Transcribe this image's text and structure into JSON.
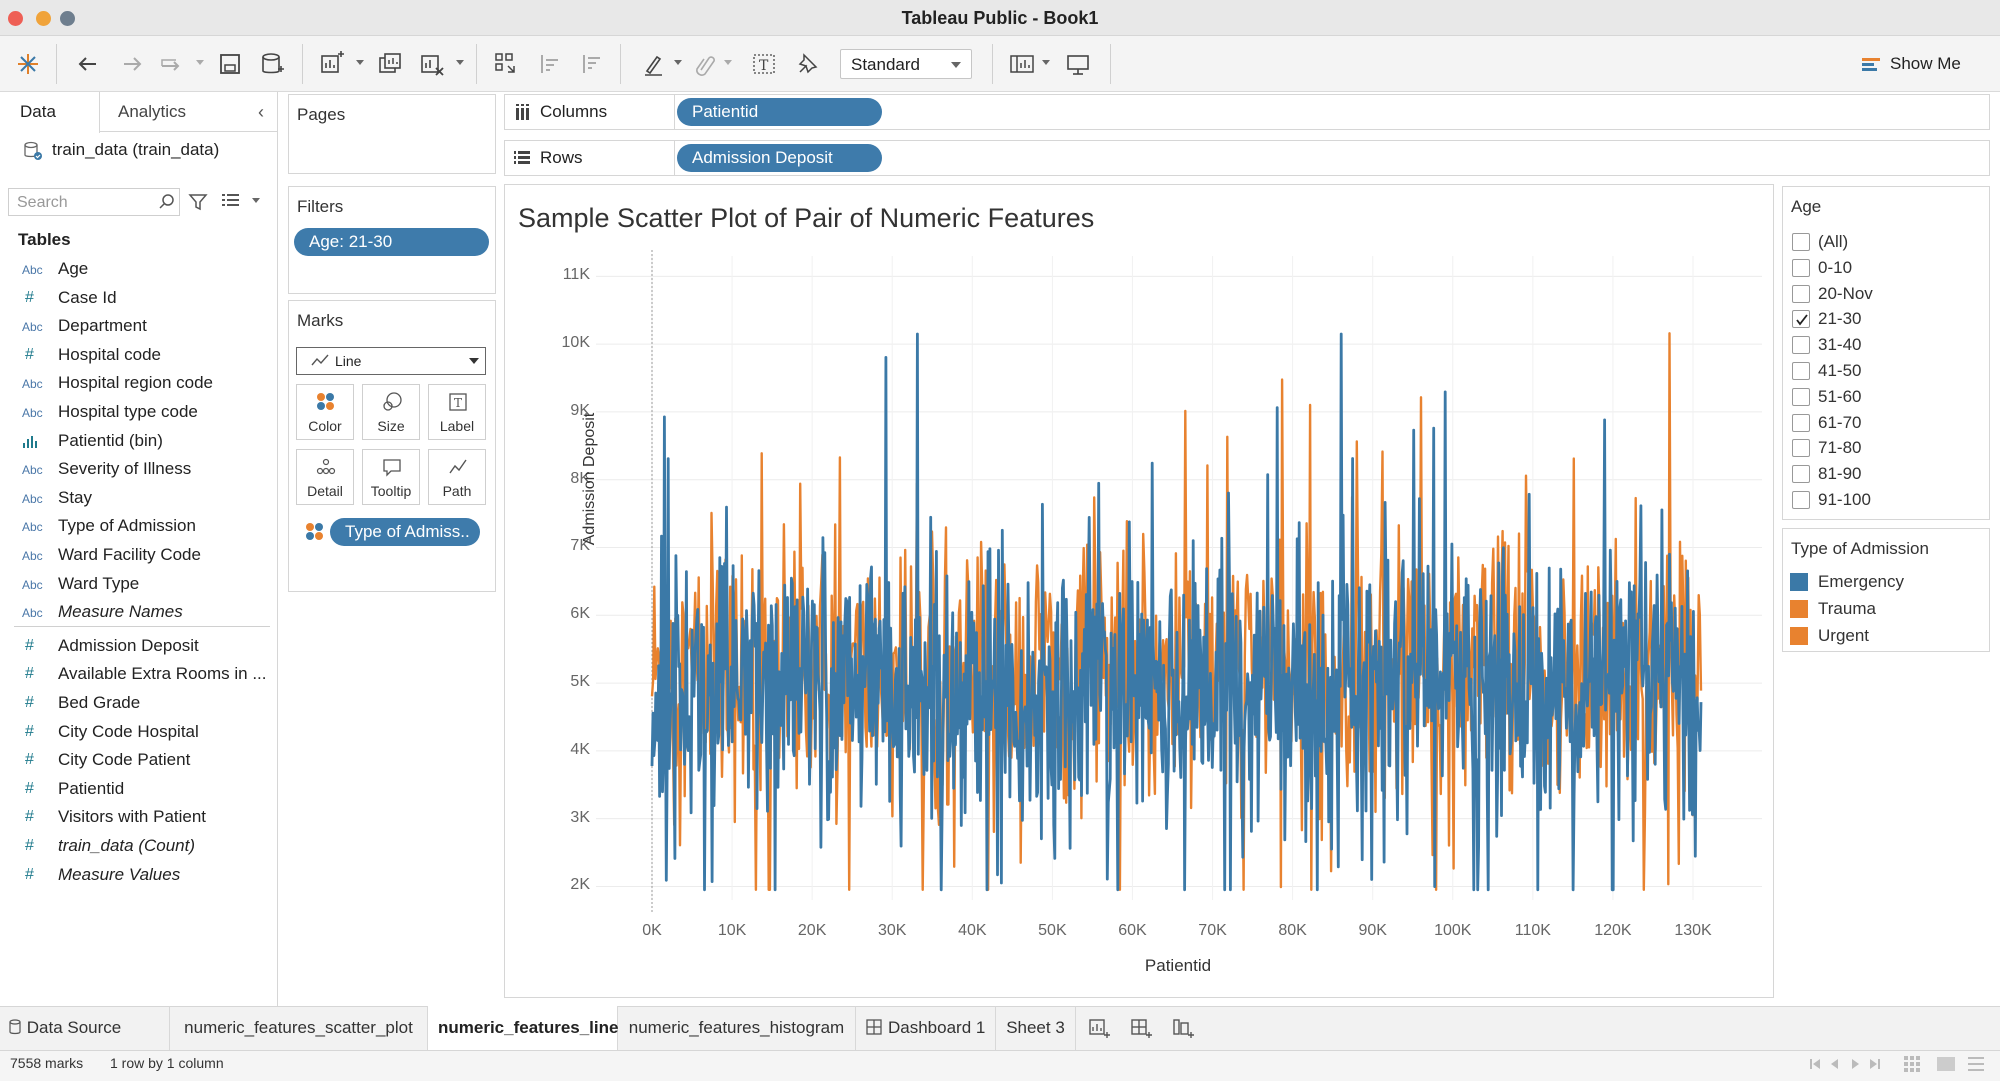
{
  "window": {
    "title": "Tableau Public - Book1"
  },
  "toolbar": {
    "fit_label": "Standard",
    "show_me_label": "Show Me"
  },
  "data_pane": {
    "tab_data": "Data",
    "tab_analytics": "Analytics",
    "datasource": "train_data (train_data)",
    "search_placeholder": "Search",
    "tables_header": "Tables",
    "fields": [
      {
        "type": "Abc",
        "name": "Age"
      },
      {
        "type": "#",
        "name": "Case Id"
      },
      {
        "type": "Abc",
        "name": "Department"
      },
      {
        "type": "#",
        "name": "Hospital code"
      },
      {
        "type": "Abc",
        "name": "Hospital region code"
      },
      {
        "type": "Abc",
        "name": "Hospital type code"
      },
      {
        "type": "bin",
        "name": "Patientid (bin)"
      },
      {
        "type": "Abc",
        "name": "Severity of Illness"
      },
      {
        "type": "Abc",
        "name": "Stay"
      },
      {
        "type": "Abc",
        "name": "Type of Admission"
      },
      {
        "type": "Abc",
        "name": "Ward Facility Code"
      },
      {
        "type": "Abc",
        "name": "Ward Type"
      },
      {
        "type": "Abc",
        "name": "Measure Names"
      },
      {
        "type": "#",
        "name": "Admission Deposit"
      },
      {
        "type": "#",
        "name": "Available Extra Rooms in ..."
      },
      {
        "type": "#",
        "name": "Bed Grade"
      },
      {
        "type": "#",
        "name": "City Code Hospital"
      },
      {
        "type": "#",
        "name": "City Code Patient"
      },
      {
        "type": "#",
        "name": "Patientid"
      },
      {
        "type": "#",
        "name": "Visitors with Patient"
      },
      {
        "type": "#",
        "name": "train_data (Count)"
      },
      {
        "type": "#",
        "name": "Measure Values"
      }
    ]
  },
  "pages": {
    "header": "Pages"
  },
  "filters": {
    "header": "Filters",
    "pill": "Age: 21-30"
  },
  "marks": {
    "header": "Marks",
    "type": "Line",
    "buttons": [
      "Color",
      "Size",
      "Label",
      "Detail",
      "Tooltip",
      "Path"
    ],
    "color_pill": "Type of Admiss.."
  },
  "shelves": {
    "columns_label": "Columns",
    "columns_pill": "Patientid",
    "rows_label": "Rows",
    "rows_pill": "Admission Deposit"
  },
  "chart_data": {
    "type": "line",
    "title": "Sample Scatter Plot of Pair of Numeric Features",
    "xlabel": "Patientid",
    "ylabel": "Admission Deposit",
    "xlim": [
      0,
      131000
    ],
    "ylim": [
      1800,
      11300
    ],
    "x_ticks": [
      "0K",
      "10K",
      "20K",
      "30K",
      "40K",
      "50K",
      "60K",
      "70K",
      "80K",
      "90K",
      "100K",
      "110K",
      "120K",
      "130K"
    ],
    "y_ticks": [
      "2K",
      "3K",
      "4K",
      "5K",
      "6K",
      "7K",
      "8K",
      "9K",
      "10K",
      "11K"
    ],
    "series": [
      {
        "name": "Emergency",
        "color": "#3b79a7",
        "approx_range": [
          1950,
          10150
        ],
        "typical_center": 4900
      },
      {
        "name": "Trauma",
        "color": "#e8822f",
        "approx_range": [
          1950,
          10800
        ],
        "typical_center": 5100
      },
      {
        "name": "Urgent",
        "color": "#e8822f",
        "approx_range": [
          2200,
          9500
        ],
        "typical_center": 5000
      }
    ],
    "grid": true
  },
  "age_filter": {
    "title": "Age",
    "options": [
      {
        "label": "(All)",
        "checked": false
      },
      {
        "label": "0-10",
        "checked": false
      },
      {
        "label": "20-Nov",
        "checked": false
      },
      {
        "label": "21-30",
        "checked": true
      },
      {
        "label": "31-40",
        "checked": false
      },
      {
        "label": "41-50",
        "checked": false
      },
      {
        "label": "51-60",
        "checked": false
      },
      {
        "label": "61-70",
        "checked": false
      },
      {
        "label": "71-80",
        "checked": false
      },
      {
        "label": "81-90",
        "checked": false
      },
      {
        "label": "91-100",
        "checked": false
      }
    ]
  },
  "color_legend": {
    "title": "Type of Admission",
    "items": [
      {
        "label": "Emergency",
        "color": "#3b79a7"
      },
      {
        "label": "Trauma",
        "color": "#e8822f"
      },
      {
        "label": "Urgent",
        "color": "#e8822f"
      }
    ]
  },
  "sheet_tabs": {
    "data_source": "Data Source",
    "tabs": [
      "numeric_features_scatter_plot",
      "numeric_features_line",
      "numeric_features_histogram",
      "Dashboard 1",
      "Sheet 3"
    ],
    "active": "numeric_features_line"
  },
  "status": {
    "marks": "7558 marks",
    "dims": "1 row by 1 column"
  }
}
